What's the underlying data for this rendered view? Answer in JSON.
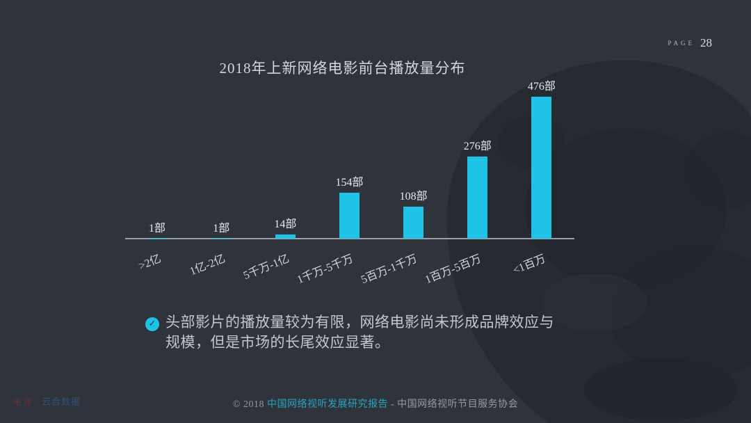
{
  "page": {
    "page_label": "PAGE",
    "page_number": "28"
  },
  "title": "2018年上新网络电影前台播放量分布",
  "chart_data": {
    "type": "bar",
    "title": "2018年上新网络电影前台播放量分布",
    "categories": [
      ">2亿",
      "1亿-2亿",
      "5千万-1亿",
      "1千万-5千万",
      "5百万-1千万",
      "1百万-5百万",
      "<1百万"
    ],
    "values": [
      1,
      1,
      14,
      154,
      108,
      276,
      476
    ],
    "value_labels": [
      "1部",
      "1部",
      "14部",
      "154部",
      "108部",
      "276部",
      "476部"
    ],
    "unit": "部",
    "xlabel": "",
    "ylabel": "",
    "ylim": [
      0,
      500
    ],
    "grid": false,
    "legend": "none",
    "bar_color": "#1fc3e8",
    "axis_color": "#9aa0a8",
    "label_color": "#e7e9ec"
  },
  "bullet": {
    "icon": "check-icon",
    "check_glyph": "✓",
    "lines": [
      "头部影片的播放量较为有限，网络电影尚未形成品牌效应与",
      "规模，但是市场的长尾效应显著。"
    ]
  },
  "footer": {
    "copyright": "© 2018 ",
    "report": "中国网络视听发展研究报告",
    "separator": " - ",
    "org": "中国网络视听节目服务协会"
  },
  "watermark": {
    "prefix": "来源：",
    "name": "云合数据"
  },
  "colors": {
    "background": "#2e333c",
    "accent": "#1fc3e8",
    "splash": "#262a31",
    "text": "#d3d6da"
  }
}
